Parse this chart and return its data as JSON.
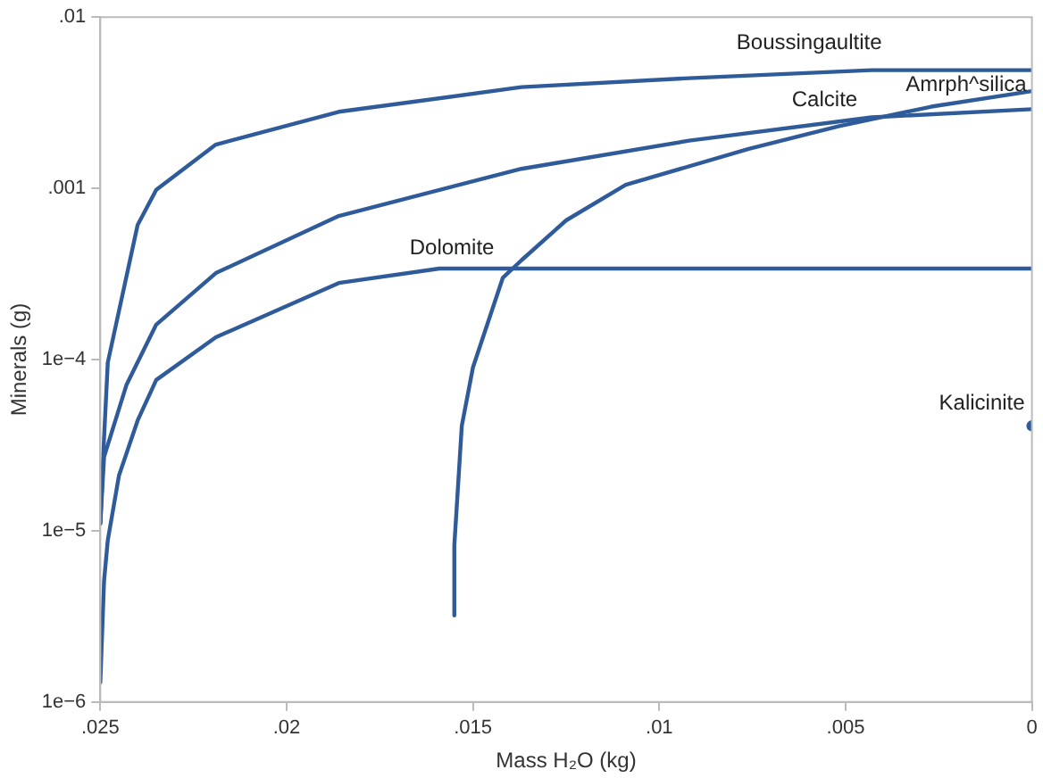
{
  "chart_data": {
    "type": "line",
    "xlabel": "Mass H₂O (kg)",
    "ylabel": "Minerals (g)",
    "log": "y",
    "grid": false,
    "legend": false,
    "marker": "none",
    "line_style": "solid",
    "xlim": [
      0.025,
      0
    ],
    "xticks": [
      {
        "value": 0.025,
        "label": ".025"
      },
      {
        "value": 0.02,
        "label": ".02"
      },
      {
        "value": 0.015,
        "label": ".015"
      },
      {
        "value": 0.01,
        "label": ".01"
      },
      {
        "value": 0.005,
        "label": ".005"
      },
      0
    ],
    "ylim": [
      1e-06,
      0.01
    ],
    "yticks": [
      {
        "value": 1e-06,
        "label": "1e−6"
      },
      {
        "value": 1e-05,
        "label": "1e−5"
      },
      {
        "value": 0.0001,
        "label": "1e−4"
      },
      {
        "value": 0.001,
        "label": ".001"
      },
      {
        "value": 0.01,
        "label": ".01"
      }
    ],
    "series": [
      {
        "name": "Boussingaultite",
        "color": "#2f5b9a",
        "x": [
          0.025,
          0.0249,
          0.0248,
          0.024,
          0.0235,
          0.0219,
          0.0186,
          0.0137,
          0.0092,
          0.0043,
          0
        ],
        "values": [
          1.1e-05,
          3.5e-05,
          9.6e-05,
          0.00061,
          0.00098,
          0.0018,
          0.0028,
          0.0039,
          0.0044,
          0.0049,
          0.0049
        ]
      },
      {
        "name": "Calcite",
        "color": "#2f5b9a",
        "x": [
          0.025,
          0.0249,
          0.0243,
          0.0235,
          0.0219,
          0.0186,
          0.0137,
          0.0092,
          0.0043,
          0
        ],
        "values": [
          1.1e-05,
          2.7e-05,
          7.1e-05,
          0.00016,
          0.00032,
          0.00069,
          0.0013,
          0.0019,
          0.0026,
          0.0029
        ]
      },
      {
        "name": "Dolomite",
        "color": "#2f5b9a",
        "x": [
          0.025,
          0.0249,
          0.0248,
          0.0245,
          0.024,
          0.0235,
          0.0219,
          0.0186,
          0.0159,
          0
        ],
        "values": [
          1.3e-06,
          5.1e-06,
          8.8e-06,
          2.1e-05,
          4.4e-05,
          7.6e-05,
          0.000135,
          0.00028,
          0.00034,
          0.00034
        ]
      },
      {
        "name": "Amrph^silica",
        "color": "#2f5b9a",
        "x": [
          0.0155,
          0.0155,
          0.0153,
          0.015,
          0.0142,
          0.0137,
          0.0125,
          0.0109,
          0.0076,
          0.0052,
          0.0027,
          0
        ],
        "values": [
          3.2e-06,
          8.2e-06,
          4.1e-05,
          9e-05,
          0.0003,
          0.00038,
          0.00065,
          0.00105,
          0.0017,
          0.0023,
          0.003,
          0.0037
        ]
      },
      {
        "name": "Kalicinite",
        "color": "#2f5b9a",
        "marker": "circle",
        "x": [
          0
        ],
        "values": [
          4.1e-05
        ]
      }
    ]
  }
}
